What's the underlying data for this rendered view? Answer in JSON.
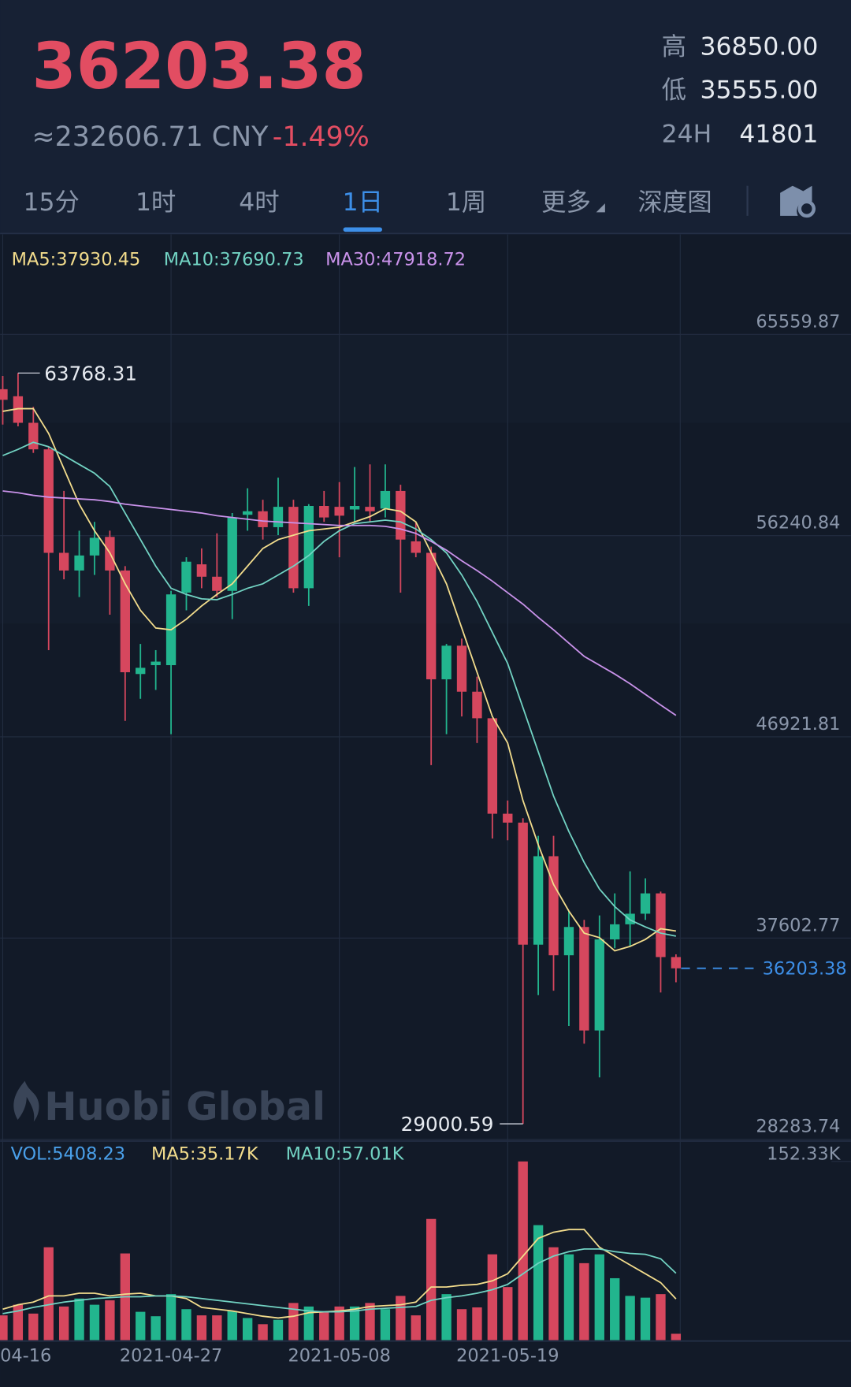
{
  "header": {
    "price": "36203.38",
    "cny": "≈232606.71 CNY",
    "change": "-1.49%",
    "stats": [
      {
        "label": "高",
        "value": "36850.00"
      },
      {
        "label": "低",
        "value": "35555.00"
      },
      {
        "label": "24H",
        "value": "41801"
      }
    ]
  },
  "tabs": [
    "15分",
    "1时",
    "4时",
    "1日",
    "1周",
    "更多",
    "深度图"
  ],
  "active_tab": 3,
  "watermark": "Huobi Global",
  "chart_data": [
    {
      "type": "candlestick",
      "categories": [
        "04-16",
        null,
        null,
        null,
        null,
        null,
        null,
        null,
        null,
        null,
        null,
        "2021-04-27",
        null,
        null,
        null,
        null,
        null,
        null,
        null,
        null,
        null,
        null,
        "2021-05-08",
        null,
        null,
        null,
        null,
        null,
        null,
        null,
        null,
        null,
        null,
        "2021-05-19",
        null,
        null,
        null,
        null,
        null,
        null,
        null,
        null,
        null,
        null,
        null
      ],
      "open": [
        63020,
        62693,
        61464,
        60235,
        55443,
        54624,
        55320,
        56180,
        54624,
        49831,
        50241,
        50241,
        53600,
        54910,
        54337,
        53682,
        57204,
        57368,
        56631,
        57573,
        53804,
        57614,
        57573,
        57450,
        57573,
        57491,
        58310,
        55975,
        55443,
        49586,
        51142,
        49012,
        47783,
        43360,
        42950,
        37298,
        41394,
        36806,
        38117,
        33324,
        37543,
        38240,
        38731,
        39673,
        36724
      ],
      "high": [
        63635,
        63768.31,
        62201,
        60358,
        58310,
        56467,
        56876,
        56467,
        54828,
        51224,
        50937,
        53682,
        55238,
        55648,
        56344,
        57286,
        58433,
        57900,
        58924,
        57900,
        57696,
        58310,
        58720,
        59416,
        59539,
        59539,
        58597,
        56876,
        55730,
        51224,
        51470,
        49708,
        47783,
        43974,
        43155,
        42336,
        42336,
        38854,
        38444,
        38649,
        39673,
        40697,
        40370,
        39755,
        36850
      ],
      "low": [
        61382,
        61300,
        60071,
        50937,
        54214,
        53395,
        54419,
        52576,
        47660,
        48684,
        49094,
        47046,
        52780,
        53804,
        53395,
        52371,
        56467,
        56057,
        56262,
        53600,
        52985,
        56876,
        55238,
        56876,
        56876,
        57081,
        53600,
        55238,
        45612,
        47046,
        47865,
        46636,
        42213,
        42131,
        29000.59,
        34963,
        35168,
        33529,
        32710,
        31154,
        37134,
        37216,
        38444,
        35086,
        35555
      ],
      "close": [
        62529,
        61464,
        60235,
        55443,
        54624,
        55320,
        56139,
        54624,
        49913,
        50118,
        50405,
        53518,
        55033,
        54337,
        53682,
        57081,
        57368,
        56631,
        57573,
        53804,
        57614,
        57081,
        57163,
        57614,
        57368,
        58310,
        56057,
        55443,
        49586,
        51142,
        49012,
        47783,
        43360,
        42950,
        37298,
        41394,
        36806,
        38117,
        33324,
        37543,
        38240,
        38731,
        39673,
        36724,
        36203.38
      ],
      "up_color": "#22b58e",
      "down_color": "#d6475e",
      "series": [
        {
          "name": "MA5:37930.45",
          "color": "#f2dc8c",
          "values": [
            61996,
            62119,
            62119,
            60972,
            59334,
            57696,
            56467,
            55443,
            54009,
            52780,
            51961,
            51879,
            52371,
            52985,
            53518,
            54009,
            54828,
            55648,
            56057,
            56262,
            56467,
            56549,
            56631,
            56876,
            57122,
            57491,
            57368,
            56876,
            55443,
            54009,
            51961,
            49913,
            47865,
            46636,
            43974,
            41926,
            40083,
            38854,
            37830,
            37625,
            37011,
            37216,
            37543,
            38035,
            37930.45
          ]
        },
        {
          "name": "MA10:37690.73",
          "color": "#72d3c3",
          "values": [
            59948,
            60235,
            60563,
            60358,
            59948,
            59539,
            59129,
            58515,
            57286,
            56057,
            54828,
            53804,
            53518,
            53313,
            53272,
            53518,
            53804,
            54009,
            54419,
            54828,
            55320,
            55975,
            56467,
            56795,
            56876,
            56958,
            56876,
            56549,
            56057,
            55443,
            54419,
            53190,
            51756,
            50323,
            48275,
            46227,
            44179,
            42540,
            41107,
            39878,
            39059,
            38444,
            38117,
            37830,
            37690.73
          ]
        },
        {
          "name": "MA30:47918.72",
          "color": "#c992ea",
          "values": [
            58310,
            58228,
            58105,
            58023,
            57982,
            57941,
            57900,
            57819,
            57696,
            57614,
            57532,
            57450,
            57368,
            57286,
            57163,
            57081,
            56999,
            56917,
            56876,
            56836,
            56795,
            56754,
            56713,
            56713,
            56713,
            56672,
            56549,
            56344,
            55975,
            55566,
            55074,
            54624,
            54132,
            53600,
            53067,
            52453,
            51879,
            51265,
            50651,
            50241,
            49831,
            49381,
            48889,
            48398,
            47918.72
          ]
        }
      ],
      "ylim": [
        28283.74,
        70188
      ],
      "yticks": [
        28283.74,
        37602.77,
        46921.81,
        56240.84,
        65559.87
      ],
      "grid": true
    },
    {
      "type": "bar",
      "name": "VOL:5408.23",
      "color": "#4aa0ea",
      "values": [
        21100,
        30160,
        22620,
        79170,
        28650,
        35440,
        30160,
        33930,
        73890,
        24130,
        20360,
        39210,
        26390,
        21110,
        21110,
        24880,
        18850,
        13570,
        17340,
        31670,
        28650,
        24130,
        28650,
        28650,
        31670,
        26390,
        37700,
        21110,
        103300,
        39210,
        26390,
        27900,
        73140,
        45240,
        152330,
        98020,
        79170,
        73140,
        65600,
        73140,
        52780,
        37700,
        36190,
        39210,
        5408.23
      ],
      "series": [
        {
          "name": "MA5:35.17K",
          "color": "#f2dc8c",
          "values": [
            26390,
            30160,
            32420,
            37700,
            37700,
            39960,
            39960,
            37700,
            39210,
            39960,
            37700,
            37700,
            35440,
            27900,
            26390,
            24880,
            22620,
            20360,
            18850,
            20360,
            23370,
            24130,
            24880,
            26390,
            28650,
            29410,
            30160,
            32420,
            45240,
            45240,
            46750,
            47500,
            50520,
            56550,
            71630,
            86710,
            91990,
            94250,
            94250,
            79170,
            71630,
            64090,
            56550,
            49010,
            35170
          ]
        },
        {
          "name": "MA10:57.01K",
          "color": "#72d3c3",
          "values": [
            22620,
            24880,
            27900,
            30160,
            32420,
            33930,
            35440,
            36190,
            36950,
            36950,
            37700,
            37700,
            36950,
            35440,
            33930,
            32420,
            30910,
            29410,
            27900,
            26390,
            24880,
            24130,
            24130,
            24880,
            26390,
            27140,
            27900,
            28650,
            33930,
            36190,
            37700,
            39960,
            42980,
            47500,
            56550,
            65600,
            71630,
            75400,
            77660,
            77660,
            75400,
            73890,
            73140,
            69370,
            57010
          ]
        }
      ],
      "ylim": [
        0,
        152330
      ],
      "yticks": [
        {
          "value": 152330,
          "label": "152.33K"
        }
      ]
    }
  ]
}
